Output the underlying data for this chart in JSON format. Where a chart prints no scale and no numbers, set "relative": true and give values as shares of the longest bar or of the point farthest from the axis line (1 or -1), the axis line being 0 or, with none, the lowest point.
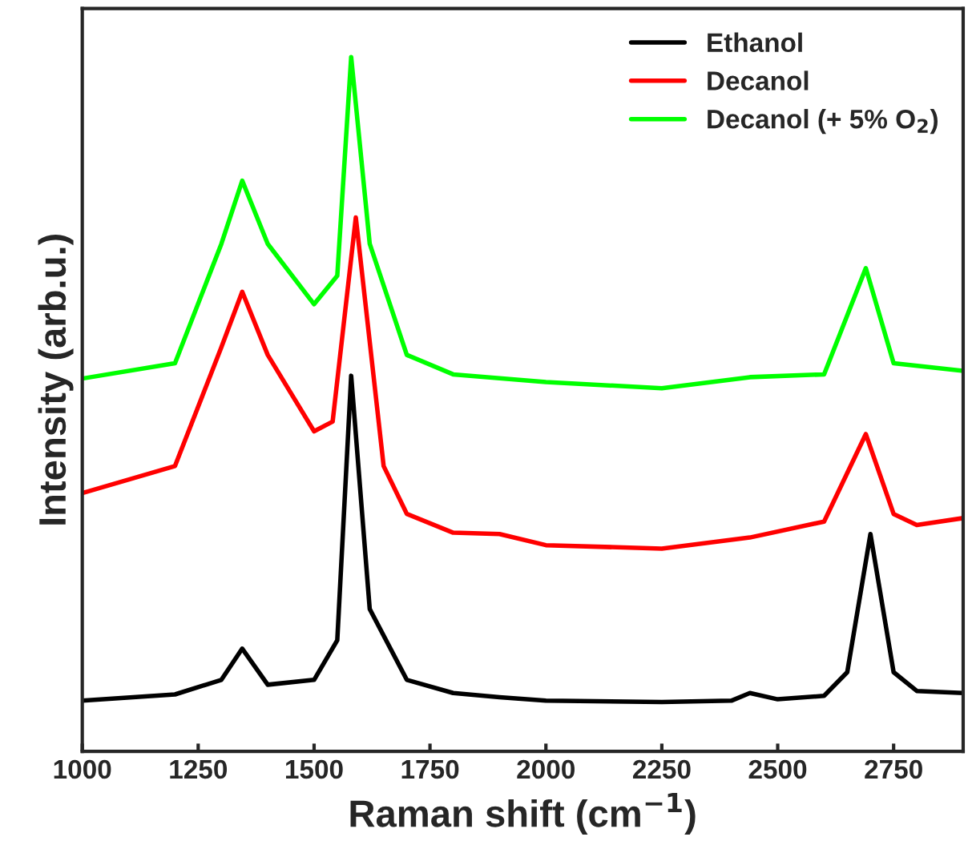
{
  "chart_data": {
    "type": "line",
    "relative": true,
    "xlabel": "Raman shift (cm$^{−1}$)",
    "ylabel": "Intensity (arb.u.)",
    "xlim": [
      1000,
      2900
    ],
    "xticks": [
      1000,
      1250,
      1500,
      1750,
      2000,
      2250,
      2500,
      2750
    ],
    "tick_labels": "x",
    "legend": "top right",
    "grid": false,
    "series": [
      {
        "name": "Ethanol",
        "color": "#000000",
        "x": [
          1000,
          1200,
          1300,
          1345,
          1400,
          1500,
          1550,
          1580,
          1620,
          1700,
          1800,
          1900,
          2000,
          2250,
          2400,
          2440,
          2500,
          2600,
          2650,
          2700,
          2750,
          2800,
          2900
        ],
        "values": [
          0.073,
          0.082,
          0.103,
          0.148,
          0.096,
          0.103,
          0.16,
          0.541,
          0.205,
          0.103,
          0.084,
          0.078,
          0.073,
          0.071,
          0.073,
          0.084,
          0.075,
          0.08,
          0.114,
          0.313,
          0.114,
          0.087,
          0.084
        ]
      },
      {
        "name": "Decanol",
        "color": "#ff0000",
        "x": [
          1000,
          1200,
          1300,
          1345,
          1400,
          1500,
          1540,
          1590,
          1650,
          1700,
          1800,
          1900,
          2000,
          2250,
          2440,
          2600,
          2690,
          2750,
          2800,
          2900
        ],
        "values": [
          0.372,
          0.411,
          0.582,
          0.662,
          0.571,
          0.461,
          0.475,
          0.769,
          0.411,
          0.342,
          0.315,
          0.313,
          0.297,
          0.292,
          0.308,
          0.331,
          0.457,
          0.342,
          0.326,
          0.336
        ]
      },
      {
        "name": "Decanol (+ 5% O$_{2}$)",
        "color": "#00ff00",
        "x": [
          1000,
          1200,
          1300,
          1345,
          1400,
          1500,
          1550,
          1580,
          1620,
          1700,
          1800,
          2000,
          2250,
          2440,
          2600,
          2690,
          2750,
          2900
        ],
        "values": [
          0.537,
          0.559,
          0.731,
          0.822,
          0.731,
          0.644,
          0.685,
          1.0,
          0.731,
          0.571,
          0.543,
          0.532,
          0.523,
          0.539,
          0.543,
          0.696,
          0.559,
          0.548
        ]
      }
    ]
  }
}
